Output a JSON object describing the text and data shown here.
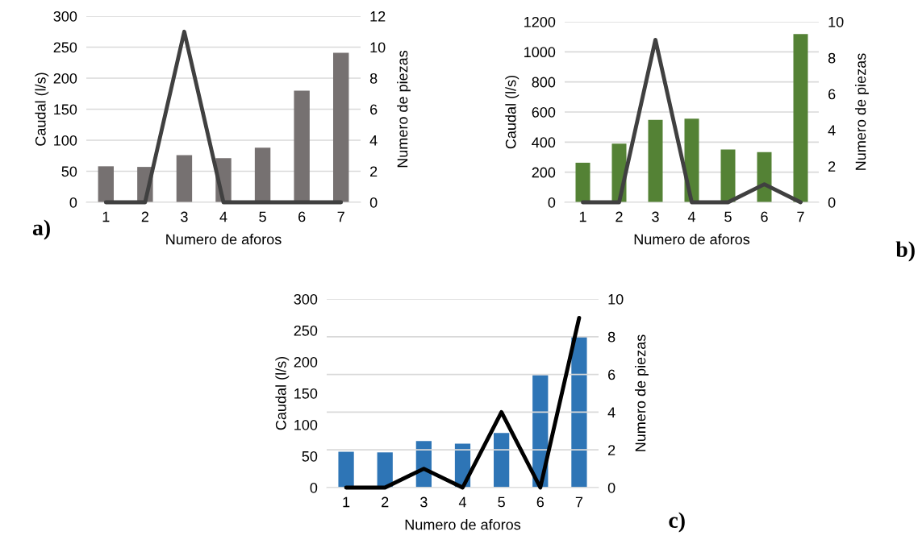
{
  "chart_data": [
    {
      "type": "bar",
      "xlabel": "Numero de aforos",
      "ylabel": "Caudal (l/s)",
      "y2label": "Numero de piezas",
      "categories": [
        "1",
        "2",
        "3",
        "4",
        "5",
        "6",
        "7"
      ],
      "series": [
        {
          "color": "#767171",
          "values": [
            58,
            57,
            76,
            71,
            88,
            180,
            241
          ]
        },
        {
          "type": "line",
          "axis": "y2",
          "color": "#404040",
          "values": [
            0,
            0,
            11,
            0,
            0,
            0,
            0
          ]
        }
      ],
      "ylim": [
        0,
        300
      ],
      "yticks": [
        0,
        50,
        100,
        150,
        200,
        250,
        300
      ],
      "y2lim": [
        0,
        12
      ],
      "y2ticks": [
        0,
        2,
        4,
        6,
        8,
        10,
        12
      ],
      "grid": "y",
      "marker": "none",
      "line_style": "solid",
      "annotations": [
        "a)"
      ]
    },
    {
      "type": "bar",
      "xlabel": "Numero de aforos",
      "ylabel": "Caudal (l/s)",
      "y2label": "Numero de piezas",
      "categories": [
        "1",
        "2",
        "3",
        "4",
        "5",
        "6",
        "7"
      ],
      "series": [
        {
          "color": "#548235",
          "values": [
            263,
            390,
            548,
            556,
            351,
            334,
            1118
          ]
        },
        {
          "type": "line",
          "axis": "y2",
          "color": "#404040",
          "values": [
            0,
            0,
            9,
            0,
            0,
            1,
            0
          ]
        }
      ],
      "ylim": [
        0,
        1200
      ],
      "yticks": [
        0,
        200,
        400,
        600,
        800,
        1000,
        1200
      ],
      "y2lim": [
        0,
        10
      ],
      "y2ticks": [
        0,
        2,
        4,
        6,
        8,
        10
      ],
      "grid": "y",
      "marker": "none",
      "line_style": "solid",
      "annotations": [
        "b)"
      ]
    },
    {
      "type": "bar",
      "xlabel": "Numero de aforos",
      "ylabel": "Caudal (l/s)",
      "y2label": "Numero de piezas",
      "categories": [
        "1",
        "2",
        "3",
        "4",
        "5",
        "6",
        "7"
      ],
      "series": [
        {
          "color": "#2e75b6",
          "values": [
            57,
            56,
            74,
            70,
            87,
            179,
            241
          ]
        },
        {
          "type": "line",
          "axis": "y2",
          "color": "#000000",
          "values": [
            0,
            0,
            1,
            0,
            4,
            0,
            9
          ]
        }
      ],
      "ylim": [
        0,
        300
      ],
      "yticks": [
        0,
        50,
        100,
        150,
        200,
        250,
        300
      ],
      "y2lim": [
        0,
        10
      ],
      "y2ticks": [
        0,
        2,
        4,
        6,
        8,
        10
      ],
      "grid": "y2",
      "marker": "none",
      "line_style": "solid",
      "annotations": [
        "c)"
      ]
    }
  ]
}
